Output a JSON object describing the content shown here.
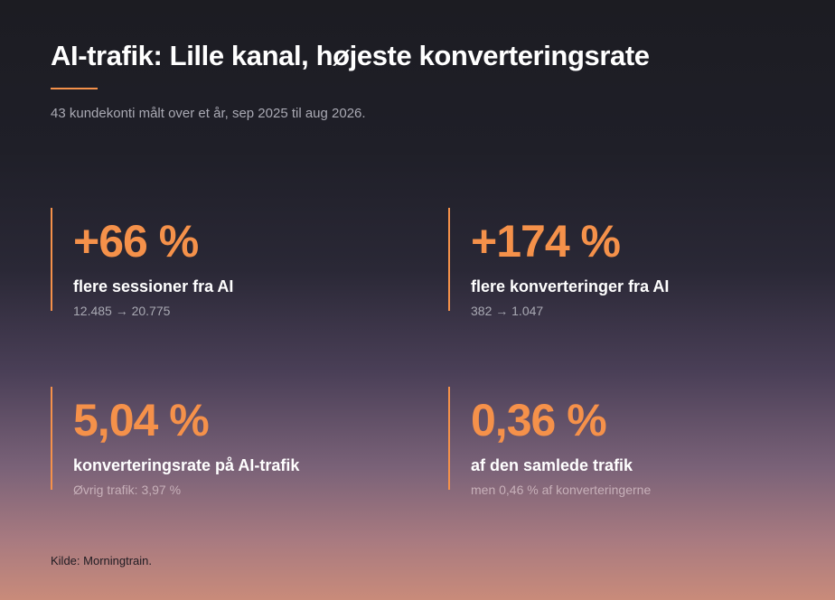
{
  "title": "AI-trafik: Lille kanal, højeste konverteringsrate",
  "subtitle": "43 kundekonti målt over et år, sep 2025 til aug 2026.",
  "stats": [
    {
      "value": "+66 %",
      "label": "flere sessioner fra AI",
      "detail": "12.485 → 20.775"
    },
    {
      "value": "+174 %",
      "label": "flere konverteringer fra AI",
      "detail": "382 → 1.047"
    },
    {
      "value": "5,04 %",
      "label": "konverteringsrate på AI-trafik",
      "detail": "Øvrig trafik: 3,97 %"
    },
    {
      "value": "0,36 %",
      "label": "af den samlede trafik",
      "detail": "men 0,46 % af konverteringerne"
    }
  ],
  "source": "Kilde: Morningtrain.",
  "colors": {
    "accent": "#f5914a",
    "title": "#ffffff",
    "muted": "#a9a9b3"
  }
}
